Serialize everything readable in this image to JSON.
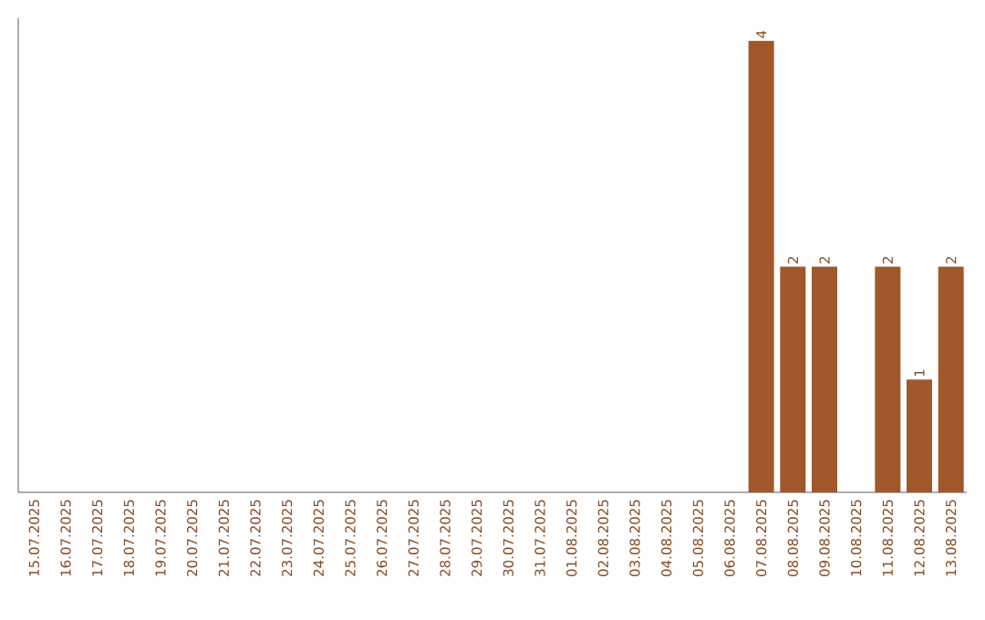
{
  "chart_data": {
    "type": "bar",
    "categories": [
      "15.07.2025",
      "16.07.2025",
      "17.07.2025",
      "18.07.2025",
      "19.07.2025",
      "20.07.2025",
      "21.07.2025",
      "22.07.2025",
      "23.07.2025",
      "24.07.2025",
      "25.07.2025",
      "26.07.2025",
      "27.07.2025",
      "28.07.2025",
      "29.07.2025",
      "30.07.2025",
      "31.07.2025",
      "01.08.2025",
      "02.08.2025",
      "03.08.2025",
      "04.08.2025",
      "05.08.2025",
      "06.08.2025",
      "07.08.2025",
      "08.08.2025",
      "09.08.2025",
      "10.08.2025",
      "11.08.2025",
      "12.08.2025",
      "13.08.2025"
    ],
    "values": [
      null,
      null,
      null,
      null,
      null,
      null,
      null,
      null,
      null,
      null,
      null,
      null,
      null,
      null,
      null,
      null,
      null,
      null,
      null,
      null,
      null,
      null,
      null,
      4,
      2,
      2,
      null,
      2,
      1,
      2
    ],
    "data_labels": true,
    "color": "#a0582a",
    "ylim": [
      0,
      4.2
    ],
    "tick_labels": "x",
    "grid": false
  }
}
